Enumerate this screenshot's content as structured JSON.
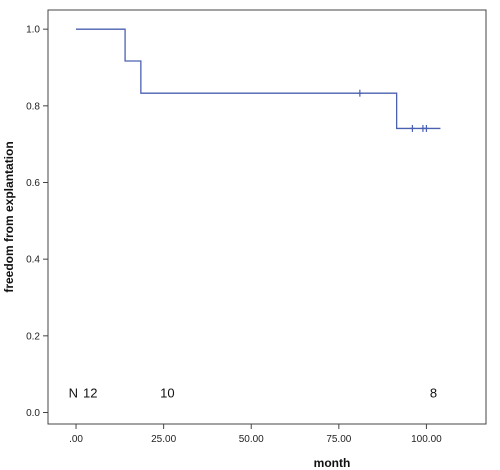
{
  "chart_data": {
    "type": "line",
    "subtype": "kaplan-meier-step",
    "xlabel": "month",
    "ylabel": "freedom from explantation",
    "xlim": [
      -8,
      117
    ],
    "ylim": [
      -0.03,
      1.05
    ],
    "x_ticks": [
      {
        "value": 0,
        "label": ".00"
      },
      {
        "value": 25,
        "label": "25.00"
      },
      {
        "value": 50,
        "label": "50.00"
      },
      {
        "value": 75,
        "label": "75.00"
      },
      {
        "value": 100,
        "label": "100.00"
      }
    ],
    "y_ticks": [
      {
        "value": 0,
        "label": "0.0"
      },
      {
        "value": 0.2,
        "label": "0.2"
      },
      {
        "value": 0.4,
        "label": "0.4"
      },
      {
        "value": 0.6,
        "label": "0.6"
      },
      {
        "value": 0.8,
        "label": "0.8"
      },
      {
        "value": 1.0,
        "label": "1.0"
      }
    ],
    "series": [
      {
        "color": "#4a60b0",
        "steps": [
          {
            "x": 0,
            "y": 1.0
          },
          {
            "x": 14,
            "y": 0.917
          },
          {
            "x": 18.5,
            "y": 0.833
          },
          {
            "x": 91.5,
            "y": 0.741
          },
          {
            "x": 104,
            "y": 0.741
          }
        ],
        "censored": [
          {
            "x": 81,
            "y": 0.833
          },
          {
            "x": 96,
            "y": 0.741
          },
          {
            "x": 99,
            "y": 0.741
          },
          {
            "x": 100,
            "y": 0.741
          }
        ]
      }
    ],
    "risk_table": {
      "label": "N",
      "y": 0.05,
      "entries": [
        {
          "x": 2,
          "label": "12"
        },
        {
          "x": 24,
          "label": "10"
        },
        {
          "x": 101,
          "label": "8"
        }
      ]
    },
    "grid": false,
    "legend": "none"
  }
}
